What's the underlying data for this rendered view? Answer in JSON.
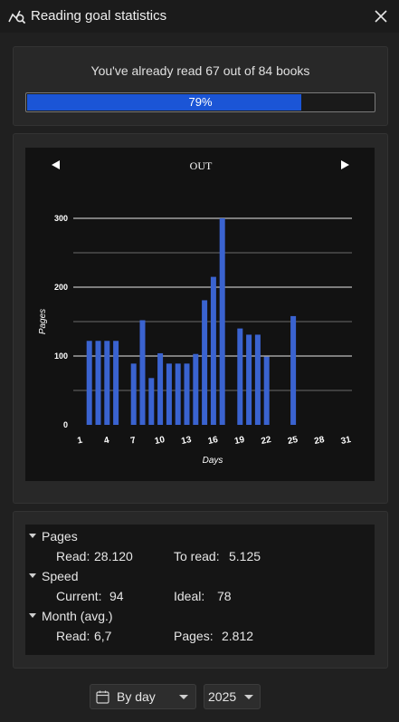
{
  "window": {
    "title": "Reading goal statistics",
    "title_icon": "chart-search-icon",
    "close_icon": "close-icon"
  },
  "goal": {
    "text": "You've already read 67 out of 84 books",
    "percent_label": "79%",
    "progress": 0.79,
    "bar_color": "#1b55d6"
  },
  "chart": {
    "month_label": "OUT",
    "prev_icon": "triangle-left-icon",
    "next_icon": "triangle-right-icon"
  },
  "chart_data": {
    "type": "bar",
    "title": "OUT",
    "xlabel": "Days",
    "ylabel": "Pages",
    "ylim": [
      0,
      300
    ],
    "yticks": [
      0,
      100,
      200,
      300
    ],
    "xtick_labels": [
      "1",
      "4",
      "7",
      "10",
      "13",
      "16",
      "19",
      "22",
      "25",
      "28",
      "31"
    ],
    "categories": [
      1,
      2,
      3,
      4,
      5,
      6,
      7,
      8,
      9,
      10,
      11,
      12,
      13,
      14,
      15,
      16,
      17,
      18,
      19,
      20,
      21,
      22,
      23,
      24,
      25,
      26,
      27,
      28,
      29,
      30,
      31
    ],
    "values": [
      0,
      122,
      122,
      122,
      122,
      0,
      89,
      152,
      68,
      104,
      89,
      89,
      89,
      103,
      181,
      215,
      300,
      0,
      140,
      131,
      131,
      99,
      0,
      0,
      158,
      0,
      0,
      0,
      0,
      0,
      0
    ],
    "bar_color": "#3a63d0",
    "grid": true
  },
  "stats": {
    "pages": {
      "label": "Pages",
      "read_label": "Read:",
      "read_value": "28.120",
      "toread_label": "To read:",
      "toread_value": "5.125"
    },
    "speed": {
      "label": "Speed",
      "current_label": "Current:",
      "current_value": "94",
      "ideal_label": "Ideal:",
      "ideal_value": "78"
    },
    "month": {
      "label": "Month (avg.)",
      "read_label": "Read:",
      "read_value": "6,7",
      "pages_label": "Pages:",
      "pages_value": "2.812"
    }
  },
  "controls": {
    "period_value": "By day",
    "period_icon": "calendar-icon",
    "year_value": "2025"
  }
}
